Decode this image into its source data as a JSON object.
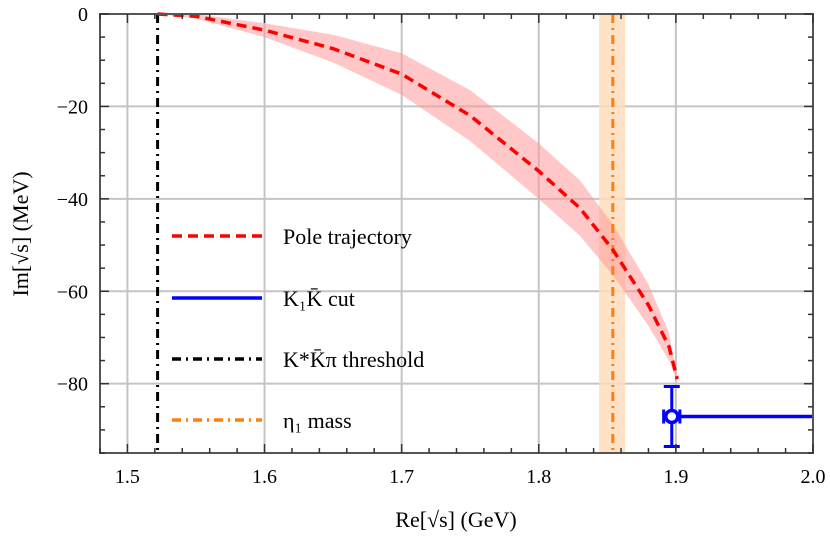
{
  "chart_data": {
    "type": "line",
    "xlabel": "Re[√s] (GeV)",
    "ylabel": "Im[√s] (MeV)",
    "xlim": [
      1.48,
      2.0
    ],
    "ylim": [
      -95,
      0
    ],
    "grid": true,
    "legend_placement": "center-left",
    "x_ticks": [
      1.5,
      1.6,
      1.7,
      1.8,
      1.9,
      2.0
    ],
    "x_tick_labels": [
      "1.5",
      "1.6",
      "1.7",
      "1.8",
      "1.9",
      "2.0"
    ],
    "y_ticks": [
      0,
      -20,
      -40,
      -60,
      -80
    ],
    "y_tick_labels": [
      "0",
      "−20",
      "−40",
      "−60",
      "−80"
    ],
    "series": [
      {
        "name": "Pole trajectory",
        "style": "dashed",
        "color": "#ff0000",
        "band_color": "#ff9999",
        "x": [
          1.522,
          1.55,
          1.6,
          1.65,
          1.7,
          1.75,
          1.8,
          1.83,
          1.854,
          1.88,
          1.895,
          1.901
        ],
        "y": [
          0,
          -0.5,
          -3.5,
          -7.5,
          -13,
          -22,
          -34,
          -42,
          -51,
          -63,
          -72,
          -79
        ],
        "band_halfwidth": [
          0,
          0.5,
          1.5,
          3,
          4.5,
          5.5,
          6,
          6,
          5.5,
          4.5,
          3,
          0.5
        ]
      },
      {
        "name": "K₁K̄ cut",
        "style": "solid",
        "color": "#0000ff",
        "x": [
          1.897,
          2.0
        ],
        "y": [
          -87.1,
          -87.1
        ],
        "point": {
          "x": 1.897,
          "y": -87.1,
          "yerr_low": -93.6,
          "yerr_high": -80.6,
          "xerr": 0.003
        }
      },
      {
        "name": "K*K̄π threshold",
        "style": "dashdot",
        "color": "#000000",
        "x_value": 1.522
      },
      {
        "name": "η₁ mass",
        "style": "dashdot",
        "color": "#ff7f0e",
        "band_color": "#ffdcbc",
        "x_value": 1.854,
        "band": [
          1.844,
          1.863
        ]
      }
    ]
  }
}
